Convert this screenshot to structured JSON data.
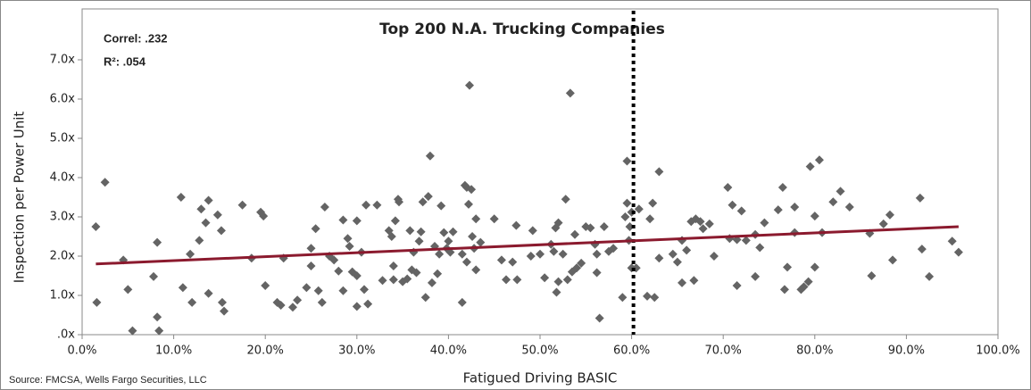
{
  "chart_data": {
    "type": "scatter",
    "title": "Top 200 N.A. Trucking Companies",
    "annotations": [
      "Correl: .232",
      "R²: .054"
    ],
    "xlabel": "Fatigued Driving BASIC",
    "ylabel": "Inspection per Power Unit",
    "source": "Source: FMCSA, Wells Fargo Securities, LLC",
    "color": "#646464",
    "x": [
      1.5,
      1.6,
      2.5,
      4.5,
      5,
      5.5,
      7.8,
      8.2,
      8.2,
      8.4,
      10.8,
      11,
      11.8,
      12,
      12.8,
      13,
      13.5,
      13.8,
      13.8,
      14.8,
      15.2,
      15.3,
      15.5,
      17.5,
      18.5,
      19.5,
      19.8,
      20,
      21.3,
      21.7,
      22,
      23,
      23.5,
      24.5,
      25,
      25,
      25.5,
      25.8,
      26.2,
      26.5,
      27,
      27.5,
      28,
      28.5,
      28.5,
      29,
      29.2,
      29.5,
      30,
      30,
      30,
      30.5,
      30.8,
      31,
      31.2,
      32.2,
      32.8,
      33.5,
      33.8,
      34,
      34,
      34.2,
      34.5,
      34.6,
      35,
      35.5,
      35.8,
      36,
      36.2,
      36.5,
      36.8,
      37,
      37.2,
      37.5,
      37.8,
      38,
      38.2,
      38.5,
      38.8,
      39,
      39.2,
      39.5,
      39.8,
      40,
      40.2,
      40.5,
      41.5,
      41.5,
      41.8,
      42,
      42,
      42.2,
      42.3,
      42.5,
      42.6,
      42.8,
      43,
      43,
      43.5,
      45,
      45.8,
      46.3,
      47,
      47.4,
      47.5,
      49,
      49.2,
      50,
      50.5,
      51.2,
      51.5,
      51.7,
      51.8,
      52,
      52,
      52.5,
      52.8,
      53,
      53.3,
      53.5,
      53.8,
      54,
      54.5,
      55,
      55.5,
      56,
      56.2,
      56.2,
      56.5,
      57,
      57.5,
      58,
      59,
      59.3,
      59.5,
      59.5,
      59.7,
      59.8,
      60,
      60,
      60.5,
      60.8,
      61.7,
      62,
      62.3,
      62.5,
      63,
      63,
      64.5,
      65,
      65.5,
      65.5,
      66,
      66.5,
      66.8,
      67,
      67.5,
      67.8,
      68.5,
      69,
      70.5,
      70.7,
      71,
      71.5,
      71.5,
      72,
      72.5,
      73.5,
      73.5,
      74,
      74.5,
      76,
      76.5,
      76.7,
      77,
      77.8,
      77.8,
      78.5,
      78.8,
      79.3,
      79.5,
      80,
      80,
      80.5,
      80.8,
      82,
      82.8,
      83.8,
      86,
      86.2,
      87.5,
      88.2,
      88.5,
      91.5,
      91.7,
      92.5,
      95,
      95.7
    ],
    "values": [
      2.75,
      0.82,
      3.88,
      1.9,
      1.15,
      0.1,
      1.48,
      2.35,
      0.45,
      0.1,
      3.5,
      1.2,
      2.05,
      0.82,
      2.4,
      3.2,
      2.85,
      3.42,
      1.05,
      3.05,
      2.65,
      0.82,
      0.6,
      3.3,
      1.95,
      3.12,
      3.02,
      1.25,
      0.82,
      0.75,
      1.95,
      0.7,
      0.88,
      1.2,
      2.2,
      1.75,
      2.7,
      1.12,
      0.82,
      3.25,
      2.0,
      1.9,
      1.62,
      2.92,
      1.12,
      2.45,
      2.25,
      1.6,
      1.5,
      2.9,
      0.72,
      2.1,
      1.15,
      3.3,
      0.78,
      3.3,
      1.38,
      2.65,
      2.5,
      1.75,
      1.4,
      2.9,
      3.45,
      3.38,
      1.35,
      1.42,
      2.65,
      1.65,
      2.1,
      1.58,
      2.38,
      2.62,
      3.38,
      0.95,
      3.52,
      4.55,
      1.32,
      2.25,
      1.55,
      2.05,
      3.28,
      2.6,
      2.2,
      2.38,
      2.1,
      2.62,
      0.82,
      2.05,
      3.8,
      3.75,
      1.85,
      3.32,
      6.35,
      3.7,
      2.5,
      2.2,
      1.65,
      2.95,
      2.35,
      2.95,
      1.9,
      1.4,
      1.85,
      2.78,
      1.4,
      2.0,
      2.65,
      2.05,
      1.45,
      2.3,
      2.12,
      2.72,
      1.08,
      1.35,
      2.85,
      2.05,
      3.45,
      1.4,
      6.15,
      1.6,
      2.55,
      1.7,
      1.82,
      2.75,
      2.72,
      2.3,
      2.05,
      1.58,
      0.42,
      2.75,
      2.12,
      2.2,
      0.95,
      3.0,
      4.42,
      3.35,
      2.4,
      2.75,
      1.7,
      3.12,
      1.7,
      3.2,
      0.98,
      2.95,
      3.35,
      0.95,
      4.15,
      1.95,
      2.05,
      1.85,
      2.4,
      1.32,
      2.15,
      2.88,
      1.38,
      2.95,
      2.88,
      2.7,
      2.82,
      2.0,
      3.75,
      2.45,
      3.3,
      1.25,
      2.42,
      3.15,
      2.4,
      2.55,
      1.48,
      2.22,
      2.85,
      3.18,
      3.75,
      1.15,
      1.72,
      2.6,
      3.25,
      1.15,
      1.22,
      1.35,
      4.28,
      3.02,
      1.72,
      4.45,
      2.6,
      3.38,
      3.65,
      3.25,
      2.58,
      1.5,
      2.82,
      3.05,
      1.9,
      3.48,
      2.18,
      1.48,
      2.38,
      2.1
    ],
    "trendline": {
      "color": "#8b1a2e",
      "x": [
        1.5,
        95.7
      ],
      "y": [
        1.8,
        2.75
      ]
    },
    "reference_line_x": 60.2,
    "xlim": [
      0,
      100
    ],
    "xticks": [
      {
        "value": 0,
        "label": "0.0%"
      },
      {
        "value": 10,
        "label": "10.0%"
      },
      {
        "value": 20,
        "label": "20.0%"
      },
      {
        "value": 30,
        "label": "30.0%"
      },
      {
        "value": 40,
        "label": "40.0%"
      },
      {
        "value": 50,
        "label": "50.0%"
      },
      {
        "value": 60,
        "label": "60.0%"
      },
      {
        "value": 70,
        "label": "70.0%"
      },
      {
        "value": 80,
        "label": "80.0%"
      },
      {
        "value": 90,
        "label": "90.0%"
      },
      {
        "value": 100,
        "label": "100.0%"
      }
    ],
    "ylim": [
      0,
      7
    ],
    "yticks": [
      {
        "value": 0,
        "label": ".0x"
      },
      {
        "value": 1,
        "label": "1.0x"
      },
      {
        "value": 2,
        "label": "2.0x"
      },
      {
        "value": 3,
        "label": "3.0x"
      },
      {
        "value": 4,
        "label": "4.0x"
      },
      {
        "value": 5,
        "label": "5.0x"
      },
      {
        "value": 6,
        "label": "6.0x"
      },
      {
        "value": 7,
        "label": "7.0x"
      }
    ]
  }
}
